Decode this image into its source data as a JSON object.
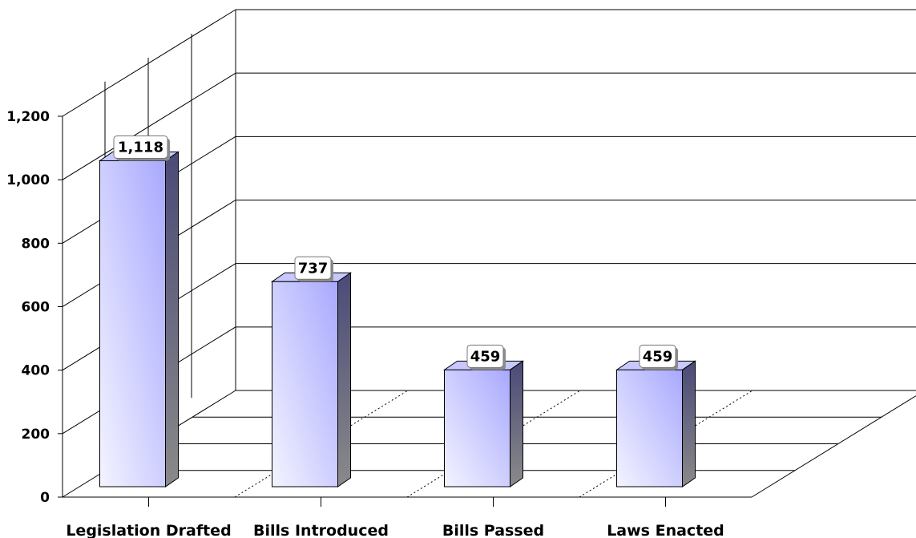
{
  "chart_data": {
    "type": "bar",
    "categories": [
      "Legislation Drafted",
      "Bills Introduced",
      "Bills Passed",
      "Laws Enacted"
    ],
    "values": [
      1118,
      737,
      459,
      459
    ],
    "data_labels": [
      "1,118",
      "737",
      "459",
      "459"
    ],
    "title": "",
    "xlabel": "",
    "ylabel": "",
    "ylim": [
      0,
      1200
    ],
    "yticks": [
      0,
      200,
      400,
      600,
      800,
      1000,
      1200
    ],
    "ytick_labels": [
      "0",
      "200",
      "400",
      "600",
      "800",
      "1,000",
      "1,200"
    ],
    "grid": true,
    "style": "3d",
    "bar_color": "#b3b3ff"
  }
}
